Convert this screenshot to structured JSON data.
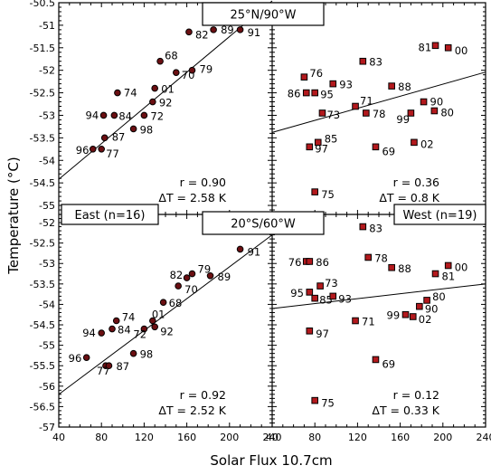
{
  "chart_data": {
    "type": "scatter",
    "xlabel": "Solar Flux 10.7cm",
    "ylabel": "Temperature (°C)",
    "panels": [
      {
        "id": "top-left",
        "title": "25°N/90°W",
        "region_label": "",
        "xlim": [
          40,
          240
        ],
        "ylim": [
          -55.2,
          -50.5
        ],
        "xticks": [
          40,
          80,
          120,
          160,
          200,
          240
        ],
        "yticks": [
          -55,
          -54.5,
          -54,
          -53.5,
          -53,
          -52.5,
          -52,
          -51.5,
          -51,
          -50.5
        ],
        "fit": [
          [
            40,
            -54.42
          ],
          [
            240,
            -50.46
          ]
        ],
        "stat_r": "r = 0.90",
        "stat_dt": "ΔT = 2.58 K",
        "point_color": "#6b0f12",
        "points": [
          {
            "label": "96",
            "x": 72,
            "y": -53.75
          },
          {
            "label": "77",
            "x": 80,
            "y": -53.75
          },
          {
            "label": "87",
            "x": 83,
            "y": -53.5
          },
          {
            "label": "98",
            "x": 110,
            "y": -53.3
          },
          {
            "label": "94",
            "x": 82,
            "y": -53.0
          },
          {
            "label": "84",
            "x": 92,
            "y": -53.0
          },
          {
            "label": "72",
            "x": 120,
            "y": -53.0
          },
          {
            "label": "92",
            "x": 128,
            "y": -52.7
          },
          {
            "label": "74",
            "x": 95,
            "y": -52.5
          },
          {
            "label": "01",
            "x": 130,
            "y": -52.4
          },
          {
            "label": "68",
            "x": 135,
            "y": -51.8
          },
          {
            "label": "70",
            "x": 150,
            "y": -52.05
          },
          {
            "label": "79",
            "x": 165,
            "y": -52.0
          },
          {
            "label": "82",
            "x": 162,
            "y": -51.15
          },
          {
            "label": "89",
            "x": 185,
            "y": -51.1
          },
          {
            "label": "91",
            "x": 210,
            "y": -51.1
          }
        ]
      },
      {
        "id": "top-right",
        "title": "",
        "region_label": "",
        "xlim": [
          40,
          240
        ],
        "ylim": [
          -55.2,
          -50.5
        ],
        "xticks": [
          40,
          80,
          120,
          160,
          200,
          240
        ],
        "yticks": [],
        "fit": [
          [
            40,
            -53.38
          ],
          [
            240,
            -52.04
          ]
        ],
        "stat_r": "r = 0.36",
        "stat_dt": "ΔT = 0.8 K",
        "point_color": "#b3191d",
        "points": [
          {
            "label": "81",
            "x": 193,
            "y": -51.45
          },
          {
            "label": "00",
            "x": 205,
            "y": -51.5
          },
          {
            "label": "83",
            "x": 125,
            "y": -51.8
          },
          {
            "label": "76",
            "x": 70,
            "y": -52.15
          },
          {
            "label": "93",
            "x": 97,
            "y": -52.3
          },
          {
            "label": "86",
            "x": 72,
            "y": -52.5
          },
          {
            "label": "95",
            "x": 80,
            "y": -52.5
          },
          {
            "label": "88",
            "x": 152,
            "y": -52.35
          },
          {
            "label": "90",
            "x": 182,
            "y": -52.7
          },
          {
            "label": "71",
            "x": 118,
            "y": -52.8
          },
          {
            "label": "80",
            "x": 192,
            "y": -52.9
          },
          {
            "label": "73",
            "x": 87,
            "y": -52.95
          },
          {
            "label": "78",
            "x": 128,
            "y": -52.95
          },
          {
            "label": "99",
            "x": 170,
            "y": -52.95
          },
          {
            "label": "85",
            "x": 83,
            "y": -53.6
          },
          {
            "label": "97",
            "x": 75,
            "y": -53.7
          },
          {
            "label": "69",
            "x": 137,
            "y": -53.7
          },
          {
            "label": "02",
            "x": 173,
            "y": -53.6
          },
          {
            "label": "75",
            "x": 80,
            "y": -54.7
          }
        ]
      },
      {
        "id": "bottom-left",
        "title": "20°S/60°W",
        "region_label": "East (n=16)",
        "xlim": [
          40,
          240
        ],
        "ylim": [
          -57,
          -51.8
        ],
        "xticks": [
          40,
          80,
          120,
          160,
          200,
          240
        ],
        "yticks": [
          -57,
          -56.5,
          -56,
          -55.5,
          -55,
          -54.5,
          -54,
          -53.5,
          -53,
          -52.5,
          -52
        ],
        "fit": [
          [
            40,
            -56.2
          ],
          [
            240,
            -52.3
          ]
        ],
        "stat_r": "r = 0.92",
        "stat_dt": "ΔT = 2.52 K",
        "point_color": "#6b0f12",
        "points": [
          {
            "label": "96",
            "x": 66,
            "y": -55.3
          },
          {
            "label": "77",
            "x": 84,
            "y": -55.5
          },
          {
            "label": "87",
            "x": 87,
            "y": -55.5
          },
          {
            "label": "98",
            "x": 110,
            "y": -55.2
          },
          {
            "label": "94",
            "x": 80,
            "y": -54.7
          },
          {
            "label": "84",
            "x": 90,
            "y": -54.6
          },
          {
            "label": "74",
            "x": 94,
            "y": -54.4
          },
          {
            "label": "72",
            "x": 120,
            "y": -54.6
          },
          {
            "label": "01",
            "x": 128,
            "y": -54.4
          },
          {
            "label": "92",
            "x": 130,
            "y": -54.55
          },
          {
            "label": "68",
            "x": 138,
            "y": -53.95
          },
          {
            "label": "70",
            "x": 152,
            "y": -53.55
          },
          {
            "label": "82",
            "x": 160,
            "y": -53.35
          },
          {
            "label": "79",
            "x": 165,
            "y": -53.25
          },
          {
            "label": "89",
            "x": 182,
            "y": -53.3
          },
          {
            "label": "91",
            "x": 210,
            "y": -52.65
          }
        ]
      },
      {
        "id": "bottom-right",
        "title": "",
        "region_label": "West (n=19)",
        "xlim": [
          40,
          240
        ],
        "ylim": [
          -57,
          -51.8
        ],
        "xticks": [
          40,
          80,
          120,
          160,
          200,
          240
        ],
        "yticks": [],
        "fit": [
          [
            40,
            -54.1
          ],
          [
            240,
            -53.5
          ]
        ],
        "stat_r": "r = 0.12",
        "stat_dt": "ΔT = 0.33 K",
        "point_color": "#b3191d",
        "points": [
          {
            "label": "83",
            "x": 125,
            "y": -52.1
          },
          {
            "label": "76",
            "x": 72,
            "y": -52.95
          },
          {
            "label": "86",
            "x": 75,
            "y": -52.95
          },
          {
            "label": "78",
            "x": 130,
            "y": -52.85
          },
          {
            "label": "00",
            "x": 205,
            "y": -53.05
          },
          {
            "label": "88",
            "x": 152,
            "y": -53.1
          },
          {
            "label": "81",
            "x": 193,
            "y": -53.25
          },
          {
            "label": "73",
            "x": 85,
            "y": -53.55
          },
          {
            "label": "95",
            "x": 75,
            "y": -53.7
          },
          {
            "label": "85",
            "x": 80,
            "y": -53.85
          },
          {
            "label": "93",
            "x": 97,
            "y": -53.8
          },
          {
            "label": "80",
            "x": 185,
            "y": -53.9
          },
          {
            "label": "90",
            "x": 178,
            "y": -54.05
          },
          {
            "label": "99",
            "x": 165,
            "y": -54.25
          },
          {
            "label": "02",
            "x": 172,
            "y": -54.3
          },
          {
            "label": "71",
            "x": 118,
            "y": -54.4
          },
          {
            "label": "97",
            "x": 75,
            "y": -54.65
          },
          {
            "label": "69",
            "x": 137,
            "y": -55.35
          },
          {
            "label": "75",
            "x": 80,
            "y": -56.35
          }
        ]
      }
    ]
  }
}
